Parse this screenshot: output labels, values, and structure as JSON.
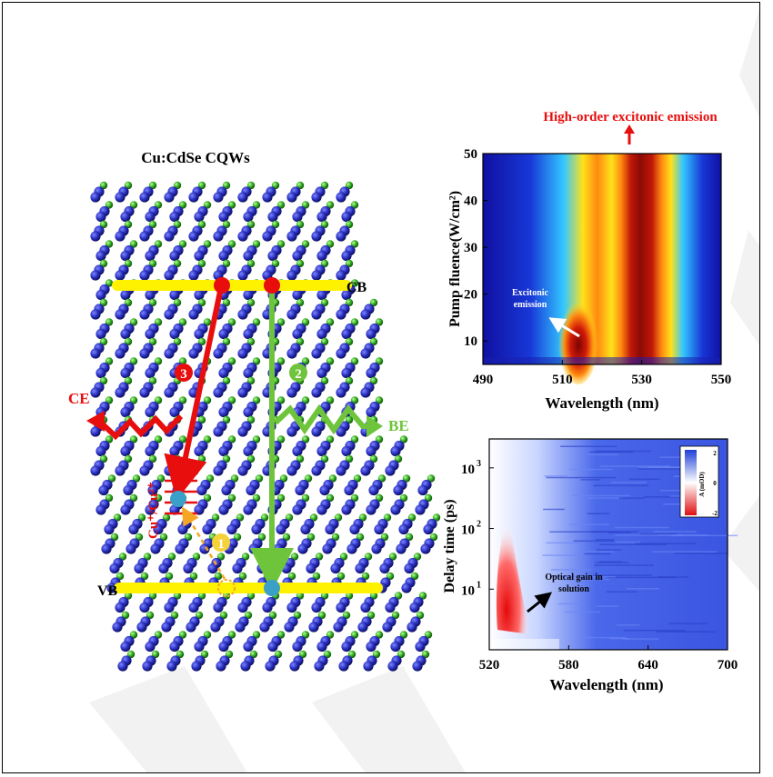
{
  "left": {
    "title": "Cu:CdSe CQWs",
    "cb_label": "CB",
    "vb_label": "VB",
    "ce_label": "CE",
    "be_label": "BE",
    "cu_label": "Cu⁺/Cu²⁺",
    "step_1": "1",
    "step_2": "2",
    "step_3": "3"
  },
  "chart_top": {
    "header_annotation": "High-order excitonic emission",
    "inset_annotation_line1": "Excitonic",
    "inset_annotation_line2": "emission",
    "ylabel": "Pump fluence(W/cm²)",
    "xlabel": "Wavelength (nm)",
    "xticks": [
      "490",
      "510",
      "530",
      "550"
    ],
    "yticks": [
      "10",
      "20",
      "30",
      "40",
      "50"
    ]
  },
  "chart_bottom": {
    "ylabel": "Delay time (ps)",
    "xlabel": "Wavelength (nm)",
    "xticks": [
      "520",
      "580",
      "640",
      "700"
    ],
    "ytick_base": "10",
    "ytick_exps": [
      "1",
      "2",
      "3"
    ],
    "annotation_line1": "Optical gain in",
    "annotation_line2": "solution",
    "colorbar_label": "A (mOD)",
    "colorbar_ticks": [
      "2",
      "0",
      "-2"
    ]
  },
  "chart_data": [
    {
      "type": "heatmap",
      "xlabel": "Wavelength (nm)",
      "ylabel": "Pump fluence(W/cm²)",
      "xlim": [
        490,
        550
      ],
      "ylim": [
        5,
        50
      ],
      "bands": [
        {
          "center_nm": 516,
          "region": "low fluence, below ~20 W/cm²",
          "label": "Excitonic emission"
        },
        {
          "center_nm": 527,
          "region": "above ~15 W/cm², up to 50 W/cm²",
          "label": "High-order excitonic emission"
        }
      ]
    },
    {
      "type": "heatmap",
      "xlabel": "Wavelength (nm)",
      "ylabel": "Delay time (ps)",
      "xlim": [
        520,
        700
      ],
      "yscale": "log",
      "ylim": [
        1,
        3000
      ],
      "colorbar": {
        "label": "A (mOD)",
        "range": [
          -2,
          2
        ]
      },
      "features": [
        {
          "region": "520–560 nm, early delay (~1–20 ps)",
          "sign": "negative",
          "label": "Optical gain in solution"
        }
      ]
    }
  ]
}
